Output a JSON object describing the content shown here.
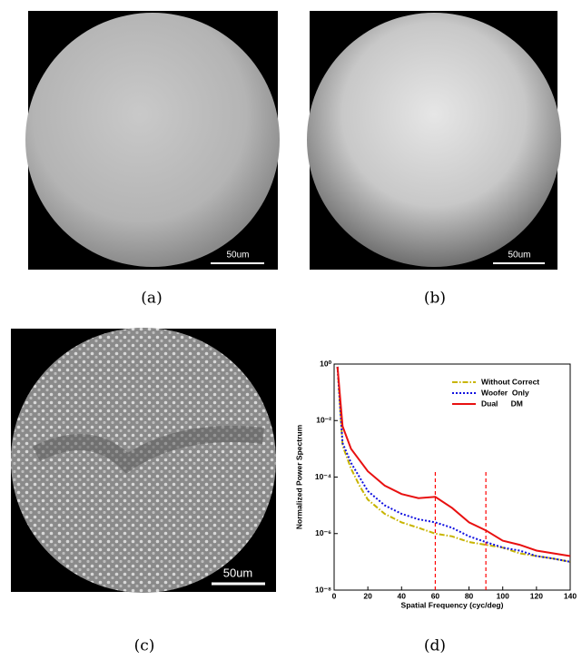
{
  "panels": [
    {
      "caption": "(a)",
      "scale_bar": "50um"
    },
    {
      "caption": "(b)",
      "scale_bar": "50um"
    },
    {
      "caption": "(c)",
      "scale_bar": "50um"
    },
    {
      "caption": "(d)"
    }
  ],
  "chart_data": {
    "type": "line",
    "xlabel": "Spatial Frequency (cyc/deg)",
    "ylabel": "Normalized Power Spectrum",
    "log_y": true,
    "x": [
      2,
      5,
      10,
      15,
      20,
      30,
      40,
      50,
      60,
      70,
      80,
      90,
      100,
      110,
      120,
      130,
      140
    ],
    "series": [
      {
        "name": "Without Correct",
        "color": "#c8b400",
        "linestyle": "dashdot",
        "values": [
          0.8,
          0.0013,
          0.0002,
          5e-05,
          1.6e-05,
          5e-06,
          2.5e-06,
          1.6e-06,
          1e-06,
          8e-07,
          5e-07,
          4e-07,
          3.2e-07,
          2e-07,
          1.6e-07,
          1.3e-07,
          1e-07
        ]
      },
      {
        "name": "Woofer  Only",
        "color": "#1010e0",
        "linestyle": "dotted",
        "values": [
          0.8,
          0.0016,
          0.00032,
          0.0001,
          3.2e-05,
          1e-05,
          5e-06,
          3.2e-06,
          2.5e-06,
          1.6e-06,
          8e-07,
          5e-07,
          3.2e-07,
          2.5e-07,
          1.6e-07,
          1.3e-07,
          1e-07
        ]
      },
      {
        "name": "Dual      DM",
        "color": "#e81010",
        "linestyle": "solid",
        "values": [
          0.8,
          0.0063,
          0.001,
          0.0004,
          0.00016,
          5e-05,
          2.5e-05,
          1.8e-05,
          2e-05,
          8e-06,
          2.5e-06,
          1.3e-06,
          5.6e-07,
          4e-07,
          2.5e-07,
          2e-07,
          1.6e-07
        ]
      }
    ],
    "vlines": [
      60,
      90
    ],
    "vline_color": "#ff0000",
    "xlim": [
      0,
      140
    ],
    "xticks": [
      0,
      20,
      40,
      60,
      80,
      100,
      120,
      140
    ],
    "ylim": [
      1e-08,
      1
    ],
    "yticks": [
      {
        "value": 1e-08,
        "label": "10⁻⁸"
      },
      {
        "value": 1e-06,
        "label": "10⁻⁶"
      },
      {
        "value": 0.0001,
        "label": "10⁻⁴"
      },
      {
        "value": 0.01,
        "label": "10⁻²"
      },
      {
        "value": 1,
        "label": "10⁰"
      }
    ],
    "legend": "upper right"
  }
}
